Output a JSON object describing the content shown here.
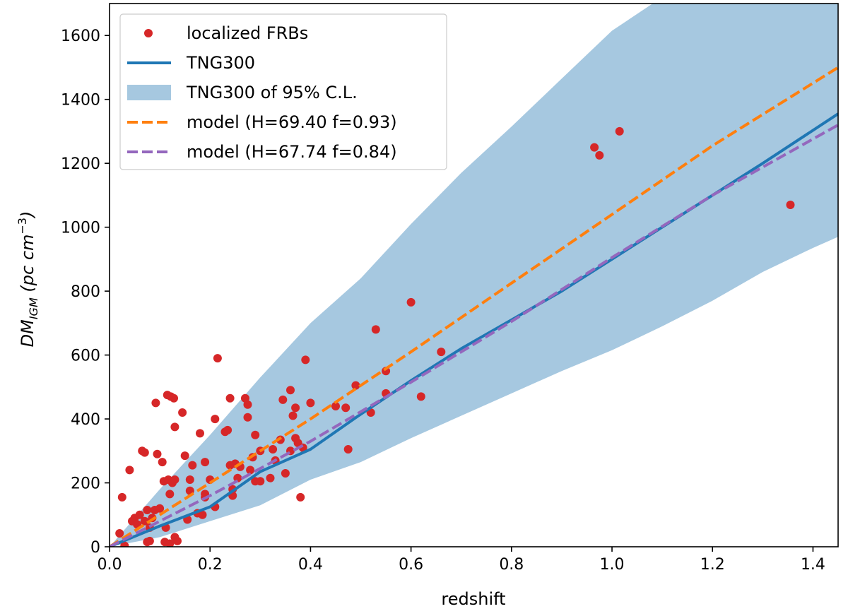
{
  "chart_data": {
    "type": "scatter",
    "xlabel": "redshift",
    "ylabel": {
      "base": "DM",
      "subscript": "IGM",
      "unit_open": " (pc cm",
      "unit_exp": "−3",
      "unit_close": ")"
    },
    "xlim": [
      0.0,
      1.45
    ],
    "ylim": [
      0,
      1700
    ],
    "xticks": [
      0.0,
      0.2,
      0.4,
      0.6,
      0.8,
      1.0,
      1.2,
      1.4
    ],
    "xtick_labels": [
      "0.0",
      "0.2",
      "0.4",
      "0.6",
      "0.8",
      "1.0",
      "1.2",
      "1.4"
    ],
    "yticks": [
      0,
      200,
      400,
      600,
      800,
      1000,
      1200,
      1400,
      1600
    ],
    "ytick_labels": [
      "0",
      "200",
      "400",
      "600",
      "800",
      "1000",
      "1200",
      "1400",
      "1600"
    ],
    "grid": false,
    "legend_position": "top-left",
    "legend": [
      {
        "label": "localized FRBs",
        "kind": "marker",
        "color": "#d62728"
      },
      {
        "label": "TNG300",
        "kind": "line",
        "color": "#1f77b4"
      },
      {
        "label": "TNG300 of 95% C.L.",
        "kind": "patch",
        "color": "#a6c8e0"
      },
      {
        "label": "model (H=69.40 f=0.93)",
        "kind": "dashed",
        "color": "#ff7f0e"
      },
      {
        "label": "model (H=67.74 f=0.84)",
        "kind": "dashed",
        "color": "#9467bd"
      }
    ],
    "band": {
      "name": "TNG300 of 95% C.L.",
      "color": "#a6c8e0",
      "x": [
        0.0,
        0.1,
        0.2,
        0.3,
        0.4,
        0.5,
        0.6,
        0.7,
        0.8,
        0.9,
        1.0,
        1.1,
        1.2,
        1.3,
        1.4,
        1.45
      ],
      "lower": [
        0,
        30,
        80,
        130,
        210,
        265,
        340,
        410,
        480,
        550,
        615,
        690,
        770,
        860,
        935,
        970
      ],
      "upper": [
        0,
        180,
        350,
        530,
        700,
        840,
        1010,
        1170,
        1315,
        1465,
        1615,
        1720,
        1720,
        1720,
        1720,
        1720
      ]
    },
    "series": [
      {
        "name": "TNG300",
        "style": "solid",
        "color": "#1f77b4",
        "x": [
          0.0,
          0.1,
          0.2,
          0.3,
          0.4,
          0.5,
          0.6,
          0.7,
          0.8,
          0.9,
          1.0,
          1.1,
          1.2,
          1.3,
          1.45
        ],
        "y": [
          0,
          65,
          125,
          235,
          305,
          415,
          520,
          620,
          710,
          800,
          900,
          1000,
          1100,
          1200,
          1355
        ]
      },
      {
        "name": "model (H=69.40 f=0.93)",
        "style": "dashed",
        "color": "#ff7f0e",
        "x": [
          0.0,
          0.2,
          0.4,
          0.6,
          0.8,
          1.0,
          1.2,
          1.45
        ],
        "y": [
          0,
          200,
          400,
          610,
          825,
          1040,
          1255,
          1500
        ]
      },
      {
        "name": "model (H=67.74 f=0.84)",
        "style": "dashed",
        "color": "#9467bd",
        "x": [
          0.0,
          0.2,
          0.4,
          0.6,
          0.8,
          1.0,
          1.2,
          1.45
        ],
        "y": [
          0,
          160,
          330,
          515,
          705,
          905,
          1100,
          1320
        ]
      }
    ],
    "points": {
      "name": "localized FRBs",
      "color": "#d62728",
      "data": [
        [
          0.02,
          42
        ],
        [
          0.025,
          155
        ],
        [
          0.03,
          3
        ],
        [
          0.04,
          240
        ],
        [
          0.045,
          80
        ],
        [
          0.05,
          90
        ],
        [
          0.055,
          70
        ],
        [
          0.06,
          100
        ],
        [
          0.065,
          300
        ],
        [
          0.07,
          295
        ],
        [
          0.07,
          80
        ],
        [
          0.075,
          115
        ],
        [
          0.075,
          15
        ],
        [
          0.08,
          60
        ],
        [
          0.08,
          18
        ],
        [
          0.085,
          90
        ],
        [
          0.09,
          115
        ],
        [
          0.092,
          450
        ],
        [
          0.095,
          290
        ],
        [
          0.1,
          120
        ],
        [
          0.105,
          265
        ],
        [
          0.108,
          205
        ],
        [
          0.11,
          15
        ],
        [
          0.112,
          60
        ],
        [
          0.115,
          475
        ],
        [
          0.117,
          210
        ],
        [
          0.12,
          10
        ],
        [
          0.12,
          165
        ],
        [
          0.122,
          470
        ],
        [
          0.125,
          200
        ],
        [
          0.128,
          465
        ],
        [
          0.13,
          210
        ],
        [
          0.13,
          375
        ],
        [
          0.13,
          30
        ],
        [
          0.135,
          18
        ],
        [
          0.145,
          420
        ],
        [
          0.15,
          285
        ],
        [
          0.155,
          85
        ],
        [
          0.16,
          210
        ],
        [
          0.16,
          175
        ],
        [
          0.165,
          255
        ],
        [
          0.175,
          105
        ],
        [
          0.18,
          355
        ],
        [
          0.185,
          100
        ],
        [
          0.19,
          165
        ],
        [
          0.19,
          155
        ],
        [
          0.19,
          265
        ],
        [
          0.2,
          210
        ],
        [
          0.21,
          400
        ],
        [
          0.21,
          125
        ],
        [
          0.215,
          590
        ],
        [
          0.23,
          360
        ],
        [
          0.235,
          365
        ],
        [
          0.24,
          255
        ],
        [
          0.24,
          465
        ],
        [
          0.245,
          160
        ],
        [
          0.245,
          180
        ],
        [
          0.25,
          260
        ],
        [
          0.255,
          215
        ],
        [
          0.26,
          250
        ],
        [
          0.27,
          465
        ],
        [
          0.275,
          445
        ],
        [
          0.275,
          405
        ],
        [
          0.28,
          240
        ],
        [
          0.285,
          280
        ],
        [
          0.29,
          350
        ],
        [
          0.29,
          205
        ],
        [
          0.3,
          205
        ],
        [
          0.3,
          300
        ],
        [
          0.32,
          215
        ],
        [
          0.325,
          305
        ],
        [
          0.33,
          270
        ],
        [
          0.34,
          335
        ],
        [
          0.345,
          460
        ],
        [
          0.35,
          230
        ],
        [
          0.36,
          490
        ],
        [
          0.36,
          300
        ],
        [
          0.365,
          410
        ],
        [
          0.37,
          435
        ],
        [
          0.37,
          340
        ],
        [
          0.375,
          325
        ],
        [
          0.38,
          155
        ],
        [
          0.385,
          310
        ],
        [
          0.39,
          585
        ],
        [
          0.4,
          450
        ],
        [
          0.45,
          440
        ],
        [
          0.47,
          435
        ],
        [
          0.475,
          305
        ],
        [
          0.49,
          505
        ],
        [
          0.52,
          420
        ],
        [
          0.53,
          680
        ],
        [
          0.55,
          550
        ],
        [
          0.55,
          480
        ],
        [
          0.6,
          765
        ],
        [
          0.62,
          470
        ],
        [
          0.66,
          610
        ],
        [
          0.965,
          1250
        ],
        [
          0.975,
          1225
        ],
        [
          1.015,
          1300
        ],
        [
          1.355,
          1070
        ]
      ]
    }
  }
}
